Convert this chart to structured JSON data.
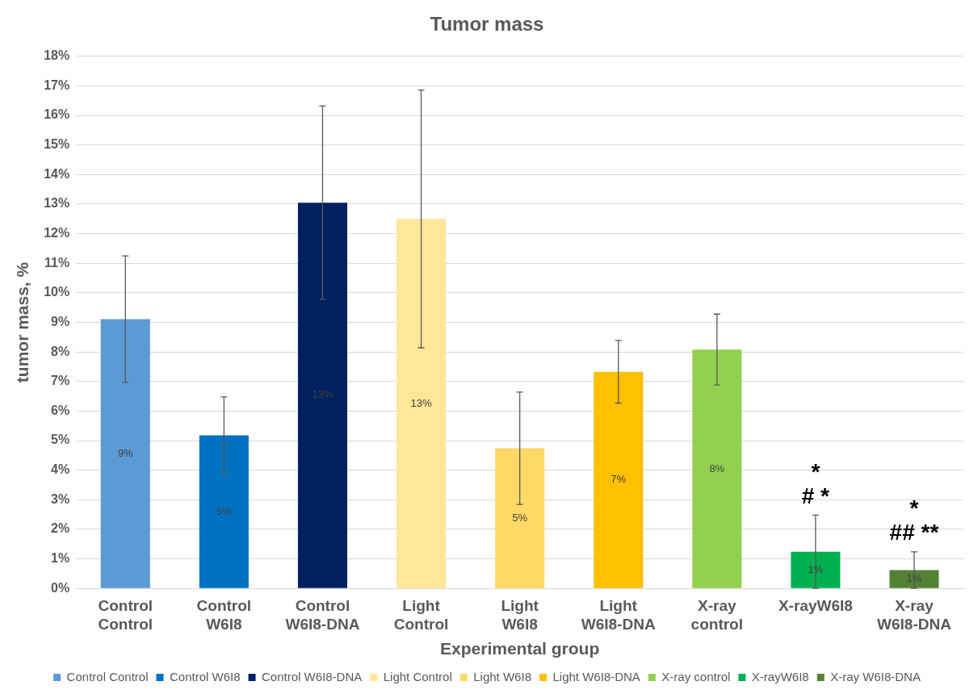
{
  "chart_data": {
    "type": "bar",
    "title": "Tumor mass",
    "xlabel": "Experimental group",
    "ylabel": "tumor mass, %",
    "categories": [
      "Control Control",
      "Control W6I8",
      "Control W6I8-DNA",
      "Light Control",
      "Light W6I8",
      "Light W6I8-DNA",
      "X-ray control",
      "X-rayW6I8",
      "X-ray W6I8-DNA"
    ],
    "series": [
      {
        "name": "Control Control",
        "color": "#5b9bd5",
        "values": [
          9.11,
          null,
          null,
          null,
          null,
          null,
          null,
          null,
          null
        ],
        "errors": [
          2.14,
          null,
          null,
          null,
          null,
          null,
          null,
          null,
          null
        ],
        "value_labels": [
          "9%",
          null,
          null,
          null,
          null,
          null,
          null,
          null,
          null
        ]
      },
      {
        "name": "Control W6I8",
        "color": "#0070c0",
        "values": [
          null,
          5.18,
          null,
          null,
          null,
          null,
          null,
          null,
          null
        ],
        "errors": [
          null,
          1.3,
          null,
          null,
          null,
          null,
          null,
          null,
          null
        ],
        "value_labels": [
          null,
          "5%",
          null,
          null,
          null,
          null,
          null,
          null,
          null
        ]
      },
      {
        "name": "Control W6I8-DNA",
        "color": "#002060",
        "values": [
          null,
          null,
          13.05,
          null,
          null,
          null,
          null,
          null,
          null
        ],
        "errors": [
          null,
          null,
          3.27,
          null,
          null,
          null,
          null,
          null,
          null
        ],
        "value_labels": [
          null,
          null,
          "13%",
          null,
          null,
          null,
          null,
          null,
          null
        ]
      },
      {
        "name": "Light Control",
        "color": "#ffe699",
        "values": [
          null,
          null,
          null,
          12.5,
          null,
          null,
          null,
          null,
          null
        ],
        "errors": [
          null,
          null,
          null,
          4.36,
          null,
          null,
          null,
          null,
          null
        ],
        "value_labels": [
          null,
          null,
          null,
          "13%",
          null,
          null,
          null,
          null,
          null
        ]
      },
      {
        "name": "Light W6I8",
        "color": "#ffd966",
        "values": [
          null,
          null,
          null,
          null,
          4.74,
          null,
          null,
          null,
          null
        ],
        "errors": [
          null,
          null,
          null,
          null,
          1.9,
          null,
          null,
          null,
          null
        ],
        "value_labels": [
          null,
          null,
          null,
          null,
          "5%",
          null,
          null,
          null,
          null
        ]
      },
      {
        "name": "Light W6I8-DNA",
        "color": "#ffc000",
        "values": [
          null,
          null,
          null,
          null,
          null,
          7.33,
          null,
          null,
          null
        ],
        "errors": [
          null,
          null,
          null,
          null,
          null,
          1.06,
          null,
          null,
          null
        ],
        "value_labels": [
          null,
          null,
          null,
          null,
          null,
          "7%",
          null,
          null,
          null
        ]
      },
      {
        "name": "X-ray control",
        "color": "#92d050",
        "values": [
          null,
          null,
          null,
          null,
          null,
          null,
          8.08,
          null,
          null
        ],
        "errors": [
          null,
          null,
          null,
          null,
          null,
          null,
          1.2,
          null,
          null
        ],
        "value_labels": [
          null,
          null,
          null,
          null,
          null,
          null,
          "8%",
          null,
          null
        ]
      },
      {
        "name": "X-rayW6I8",
        "color": "#00b050",
        "values": [
          null,
          null,
          null,
          null,
          null,
          null,
          null,
          1.24,
          null
        ],
        "errors": [
          null,
          null,
          null,
          null,
          null,
          null,
          null,
          1.24,
          null
        ],
        "value_labels": [
          null,
          null,
          null,
          null,
          null,
          null,
          null,
          "1%",
          null
        ]
      },
      {
        "name": "X-ray W6I8-DNA",
        "color": "#548235",
        "values": [
          null,
          null,
          null,
          null,
          null,
          null,
          null,
          null,
          0.62
        ],
        "errors": [
          null,
          null,
          null,
          null,
          null,
          null,
          null,
          null,
          0.62
        ],
        "value_labels": [
          null,
          null,
          null,
          null,
          null,
          null,
          null,
          null,
          "1%"
        ]
      }
    ],
    "ylim": [
      0,
      18
    ],
    "yticks": [
      {
        "value": 0,
        "label": "0%"
      },
      {
        "value": 1,
        "label": "1%"
      },
      {
        "value": 2,
        "label": "2%"
      },
      {
        "value": 3,
        "label": "3%"
      },
      {
        "value": 4,
        "label": "4%"
      },
      {
        "value": 5,
        "label": "5%"
      },
      {
        "value": 6,
        "label": "6%"
      },
      {
        "value": 7,
        "label": "7%"
      },
      {
        "value": 8,
        "label": "8%"
      },
      {
        "value": 9,
        "label": "9%"
      },
      {
        "value": 10,
        "label": "10%"
      },
      {
        "value": 11,
        "label": "11%"
      },
      {
        "value": 12,
        "label": "12%"
      },
      {
        "value": 13,
        "label": "13%"
      },
      {
        "value": 14,
        "label": "14%"
      },
      {
        "value": 15,
        "label": "15%"
      },
      {
        "value": 16,
        "label": "16%"
      },
      {
        "value": 17,
        "label": "17%"
      },
      {
        "value": 18,
        "label": "18%"
      }
    ],
    "annotations": [
      {
        "text": "# *",
        "x": "X-rayW6I8",
        "y": 1.24
      },
      {
        "text": "*",
        "x": "X-rayW6I8",
        "y": 1.24
      },
      {
        "text": "## **",
        "x": "X-ray W6I8-DNA",
        "y": 0.62
      },
      {
        "text": "*",
        "x": "X-ray W6I8-DNA",
        "y": 0.62
      }
    ],
    "grid": "y",
    "legend": "bottom"
  }
}
